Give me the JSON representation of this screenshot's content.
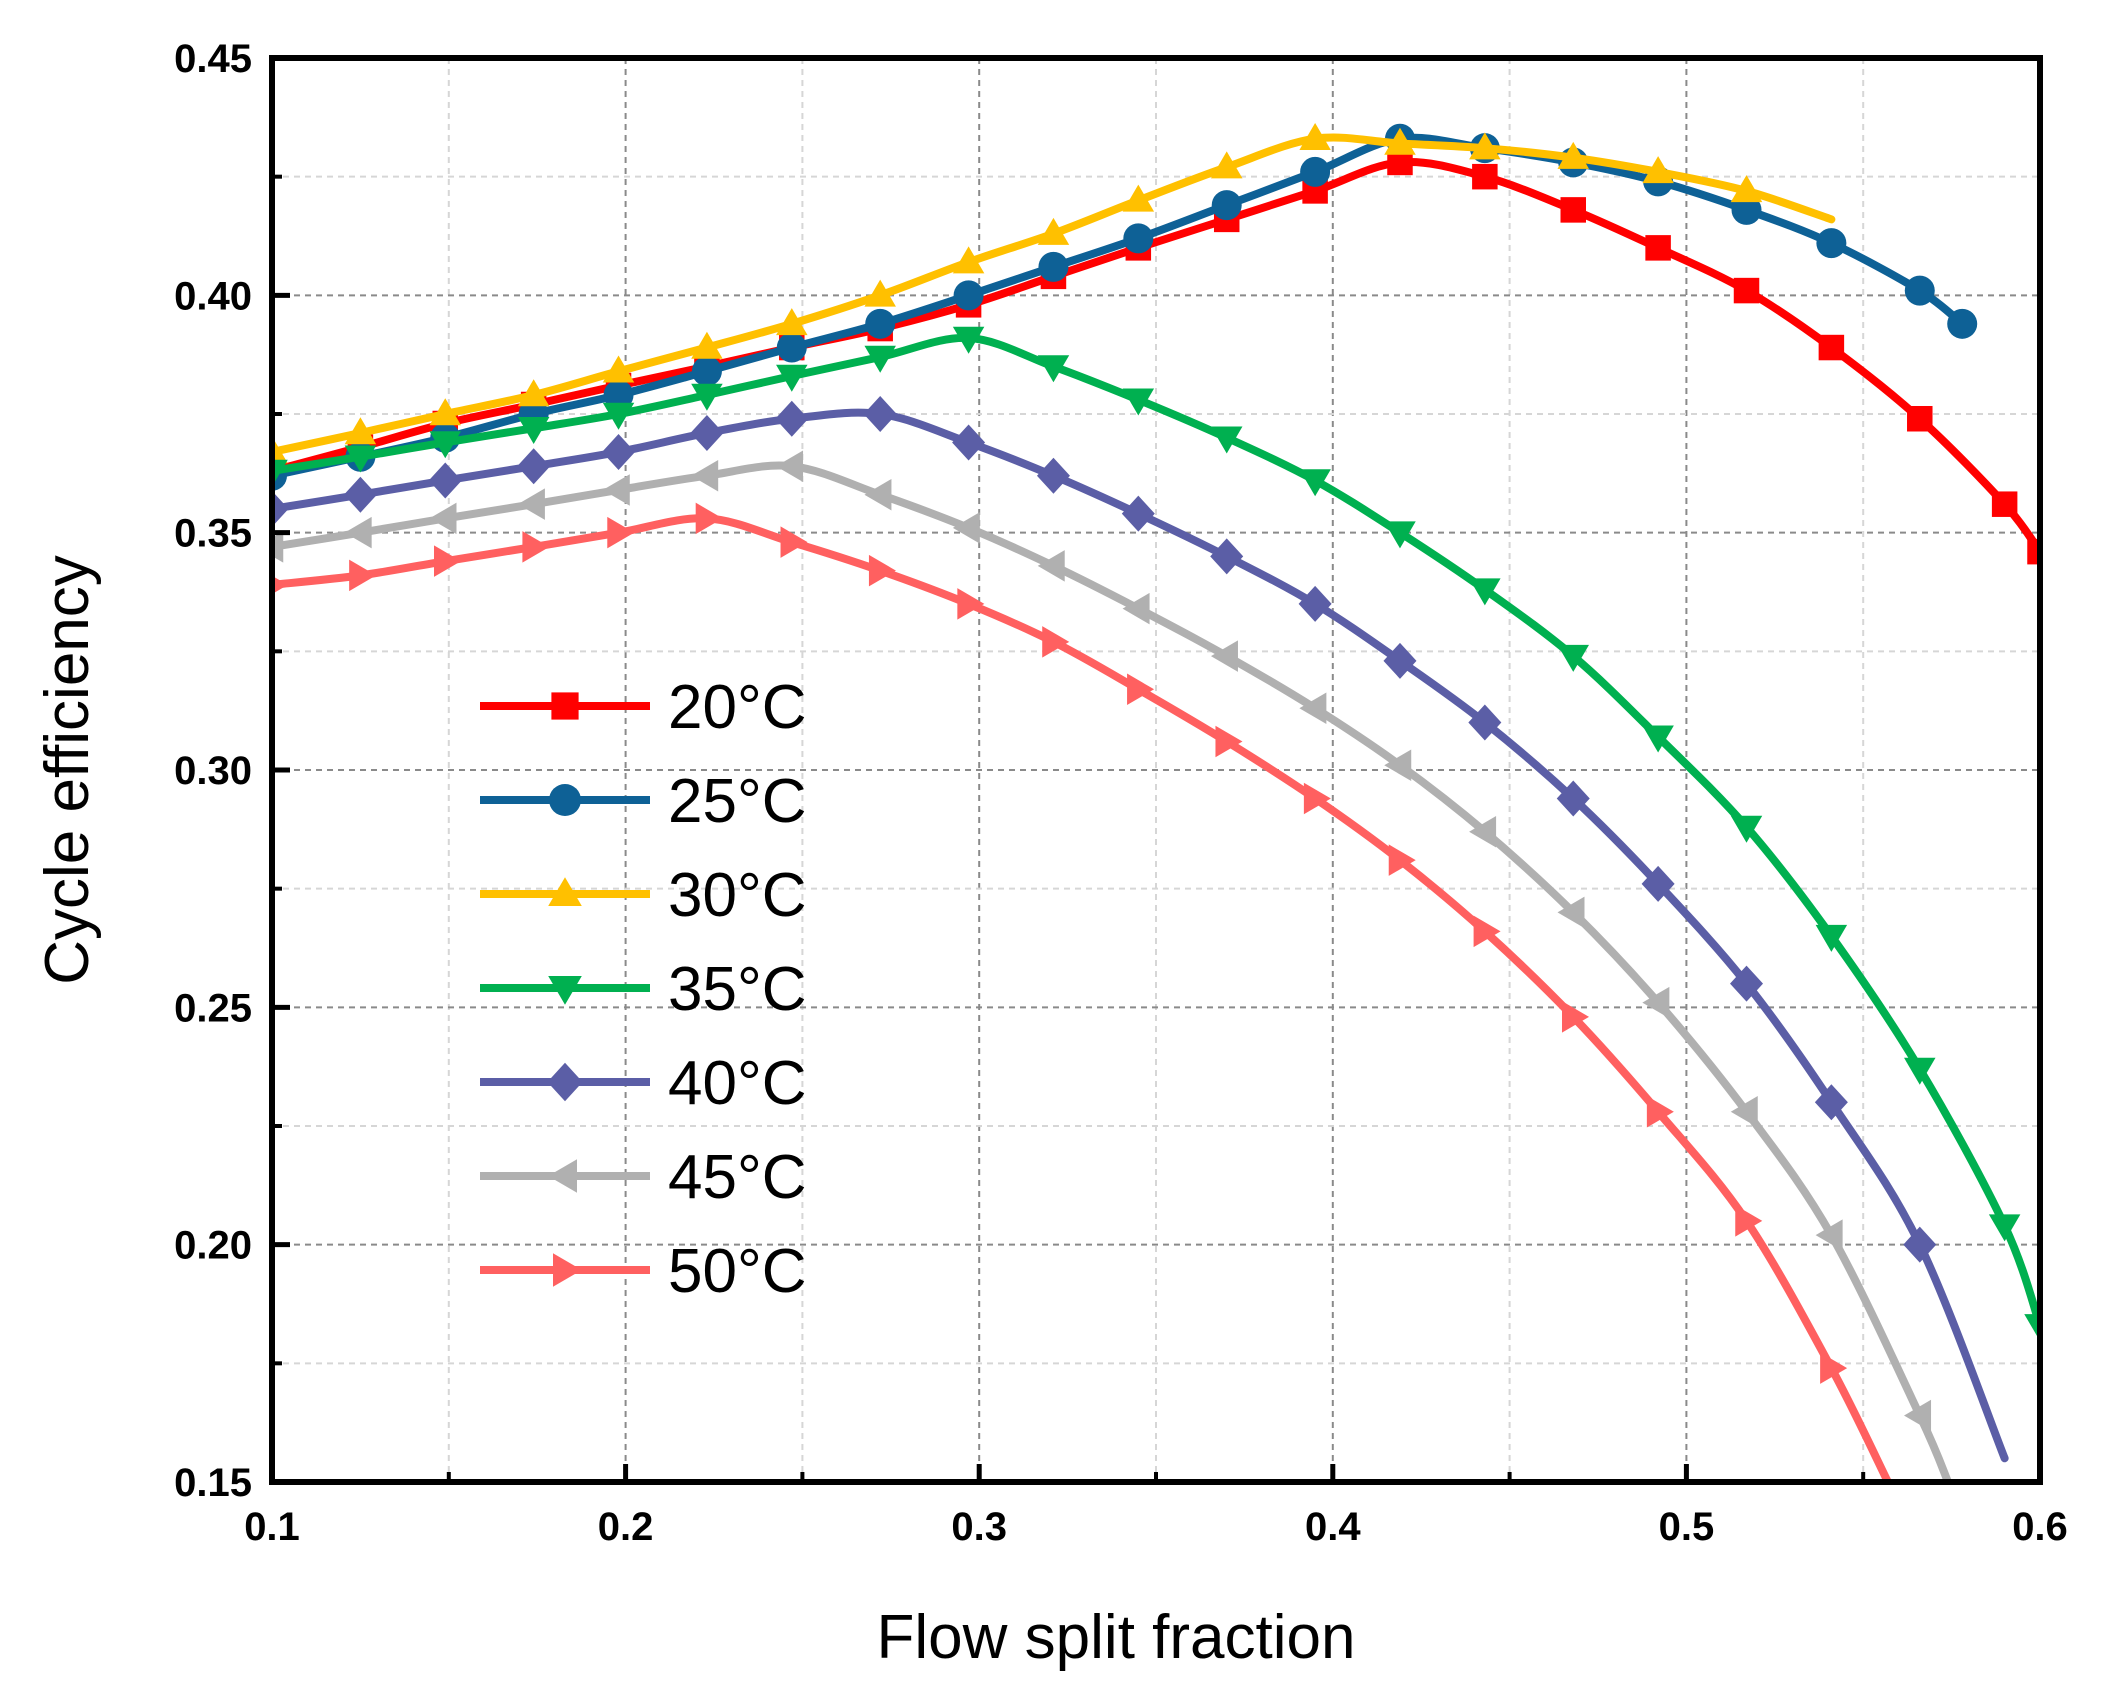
{
  "chart_data": {
    "type": "line",
    "title": "",
    "xlabel": "Flow split fraction",
    "ylabel": "Cycle efficiency",
    "xlim": [
      0.1,
      0.6
    ],
    "ylim": [
      0.15,
      0.45
    ],
    "xticks": [
      0.1,
      0.2,
      0.3,
      0.4,
      0.5,
      0.6
    ],
    "xtick_labels": [
      "0.1",
      "0.2",
      "0.3",
      "0.4",
      "0.5",
      "0.6"
    ],
    "yticks": [
      0.15,
      0.2,
      0.25,
      0.3,
      0.35,
      0.4,
      0.45
    ],
    "ytick_labels": [
      "0.15",
      "0.20",
      "0.25",
      "0.30",
      "0.35",
      "0.40",
      "0.45"
    ],
    "grid": true,
    "legend_position": "left-center",
    "series": [
      {
        "name": "20°C",
        "color": "#ff0000",
        "marker": "square",
        "x": [
          0.1,
          0.125,
          0.149,
          0.174,
          0.198,
          0.223,
          0.247,
          0.272,
          0.297,
          0.321,
          0.345,
          0.37,
          0.395,
          0.419,
          0.443,
          0.468,
          0.492,
          0.517,
          0.541,
          0.566,
          0.59,
          0.6
        ],
        "y": [
          0.363,
          0.368,
          0.373,
          0.377,
          0.381,
          0.385,
          0.389,
          0.393,
          0.398,
          0.404,
          0.41,
          0.416,
          0.422,
          0.428,
          0.425,
          0.418,
          0.41,
          0.401,
          0.389,
          0.374,
          0.356,
          0.346
        ]
      },
      {
        "name": "25°C",
        "color": "#0e6196",
        "marker": "circle",
        "x": [
          0.1,
          0.125,
          0.149,
          0.174,
          0.198,
          0.223,
          0.247,
          0.272,
          0.297,
          0.321,
          0.345,
          0.37,
          0.395,
          0.419,
          0.443,
          0.468,
          0.492,
          0.517,
          0.541,
          0.566,
          0.578
        ],
        "y": [
          0.362,
          0.366,
          0.37,
          0.375,
          0.379,
          0.384,
          0.389,
          0.394,
          0.4,
          0.406,
          0.412,
          0.419,
          0.426,
          0.433,
          0.431,
          0.428,
          0.424,
          0.418,
          0.411,
          0.401,
          0.394
        ]
      },
      {
        "name": "30°C",
        "color": "#ffc000",
        "marker": "triangle-up",
        "x": [
          0.1,
          0.125,
          0.149,
          0.174,
          0.198,
          0.223,
          0.247,
          0.272,
          0.297,
          0.321,
          0.345,
          0.37,
          0.395,
          0.419,
          0.443,
          0.468,
          0.492,
          0.517,
          0.541
        ],
        "y": [
          0.367,
          0.371,
          0.375,
          0.379,
          0.384,
          0.389,
          0.394,
          0.4,
          0.407,
          0.413,
          0.42,
          0.427,
          0.433,
          0.432,
          0.431,
          0.429,
          0.426,
          0.422,
          0.416
        ]
      },
      {
        "name": "35°C",
        "color": "#00b050",
        "marker": "triangle-down",
        "x": [
          0.1,
          0.125,
          0.149,
          0.174,
          0.198,
          0.223,
          0.247,
          0.272,
          0.297,
          0.321,
          0.345,
          0.37,
          0.395,
          0.419,
          0.443,
          0.468,
          0.492,
          0.517,
          0.541,
          0.566,
          0.59,
          0.6
        ],
        "y": [
          0.363,
          0.366,
          0.369,
          0.372,
          0.375,
          0.379,
          0.383,
          0.387,
          0.391,
          0.385,
          0.378,
          0.37,
          0.361,
          0.35,
          0.338,
          0.324,
          0.307,
          0.288,
          0.265,
          0.237,
          0.204,
          0.183
        ]
      },
      {
        "name": "40°C",
        "color": "#5b5ea6",
        "marker": "diamond",
        "x": [
          0.1,
          0.125,
          0.149,
          0.174,
          0.198,
          0.223,
          0.247,
          0.272,
          0.297,
          0.321,
          0.345,
          0.37,
          0.395,
          0.419,
          0.443,
          0.468,
          0.492,
          0.517,
          0.541,
          0.566,
          0.59
        ],
        "y": [
          0.355,
          0.358,
          0.361,
          0.364,
          0.367,
          0.371,
          0.374,
          0.375,
          0.369,
          0.362,
          0.354,
          0.345,
          0.335,
          0.323,
          0.31,
          0.294,
          0.276,
          0.255,
          0.23,
          0.2,
          0.155
        ]
      },
      {
        "name": "45°C",
        "color": "#b0b0b0",
        "marker": "triangle-left",
        "x": [
          0.1,
          0.125,
          0.149,
          0.174,
          0.198,
          0.223,
          0.247,
          0.272,
          0.297,
          0.321,
          0.345,
          0.37,
          0.395,
          0.419,
          0.443,
          0.468,
          0.492,
          0.517,
          0.541,
          0.566,
          0.574
        ],
        "y": [
          0.347,
          0.35,
          0.353,
          0.356,
          0.359,
          0.362,
          0.364,
          0.358,
          0.351,
          0.343,
          0.334,
          0.324,
          0.313,
          0.301,
          0.287,
          0.27,
          0.251,
          0.228,
          0.202,
          0.164,
          0.15
        ]
      },
      {
        "name": "50°C",
        "color": "#ff6060",
        "marker": "triangle-right",
        "x": [
          0.1,
          0.125,
          0.149,
          0.174,
          0.198,
          0.223,
          0.247,
          0.272,
          0.297,
          0.321,
          0.345,
          0.37,
          0.395,
          0.419,
          0.443,
          0.468,
          0.492,
          0.517,
          0.541,
          0.557
        ],
        "y": [
          0.339,
          0.341,
          0.344,
          0.347,
          0.35,
          0.353,
          0.348,
          0.342,
          0.335,
          0.327,
          0.317,
          0.306,
          0.294,
          0.281,
          0.266,
          0.248,
          0.228,
          0.205,
          0.174,
          0.15
        ]
      }
    ]
  }
}
